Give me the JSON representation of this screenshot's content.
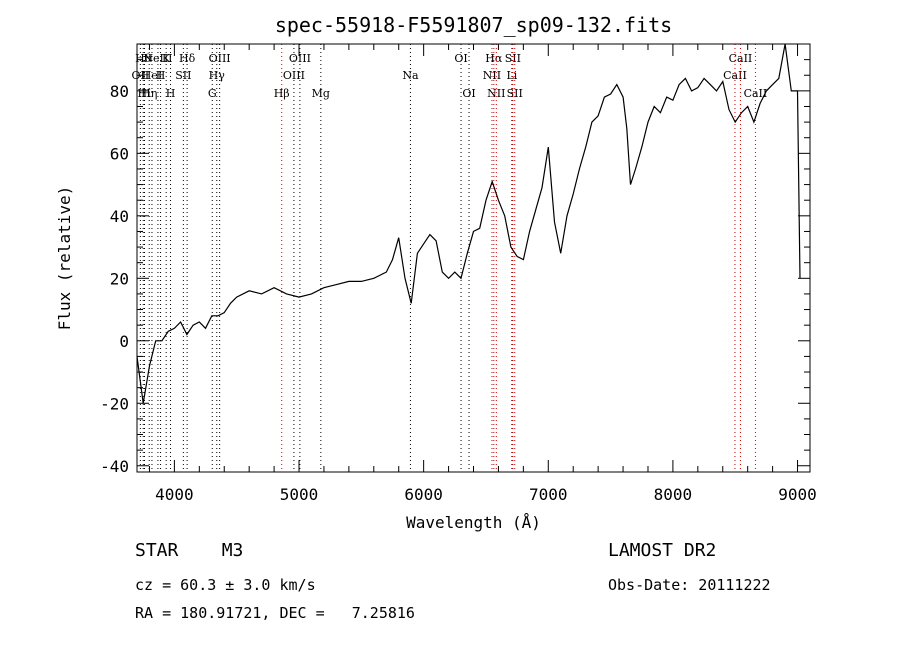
{
  "chart_data": {
    "type": "line",
    "title": "spec-55918-F5591807_sp09-132.fits",
    "xlabel": "Wavelength (Å)",
    "ylabel": "Flux (relative)",
    "xlim": [
      3700,
      9100
    ],
    "ylim": [
      -42,
      95
    ],
    "xticks": [
      4000,
      5000,
      6000,
      7000,
      8000,
      9000
    ],
    "yticks": [
      -40,
      -20,
      0,
      20,
      40,
      60,
      80
    ],
    "grid": false,
    "series": [
      {
        "color": "#000000",
        "points": [
          [
            3700,
            -5
          ],
          [
            3750,
            -20
          ],
          [
            3800,
            -8
          ],
          [
            3850,
            0
          ],
          [
            3900,
            0
          ],
          [
            3950,
            3
          ],
          [
            4000,
            4
          ],
          [
            4050,
            6
          ],
          [
            4100,
            2
          ],
          [
            4150,
            5
          ],
          [
            4200,
            6
          ],
          [
            4250,
            4
          ],
          [
            4300,
            8
          ],
          [
            4350,
            8
          ],
          [
            4400,
            9
          ],
          [
            4450,
            12
          ],
          [
            4500,
            14
          ],
          [
            4600,
            16
          ],
          [
            4700,
            15
          ],
          [
            4800,
            17
          ],
          [
            4900,
            15
          ],
          [
            5000,
            14
          ],
          [
            5100,
            15
          ],
          [
            5200,
            17
          ],
          [
            5300,
            18
          ],
          [
            5400,
            19
          ],
          [
            5500,
            19
          ],
          [
            5600,
            20
          ],
          [
            5700,
            22
          ],
          [
            5750,
            26
          ],
          [
            5800,
            33
          ],
          [
            5850,
            20
          ],
          [
            5900,
            12
          ],
          [
            5950,
            28
          ],
          [
            6000,
            31
          ],
          [
            6050,
            34
          ],
          [
            6100,
            32
          ],
          [
            6150,
            22
          ],
          [
            6200,
            20
          ],
          [
            6250,
            22
          ],
          [
            6300,
            20
          ],
          [
            6350,
            28
          ],
          [
            6400,
            35
          ],
          [
            6450,
            36
          ],
          [
            6500,
            45
          ],
          [
            6550,
            51
          ],
          [
            6600,
            45
          ],
          [
            6650,
            40
          ],
          [
            6700,
            30
          ],
          [
            6750,
            27
          ],
          [
            6800,
            26
          ],
          [
            6850,
            35
          ],
          [
            6900,
            42
          ],
          [
            6950,
            49
          ],
          [
            7000,
            62
          ],
          [
            7050,
            38
          ],
          [
            7100,
            28
          ],
          [
            7150,
            40
          ],
          [
            7200,
            47
          ],
          [
            7250,
            55
          ],
          [
            7300,
            62
          ],
          [
            7350,
            70
          ],
          [
            7400,
            72
          ],
          [
            7450,
            78
          ],
          [
            7500,
            79
          ],
          [
            7550,
            82
          ],
          [
            7600,
            78
          ],
          [
            7630,
            68
          ],
          [
            7660,
            50
          ],
          [
            7700,
            55
          ],
          [
            7750,
            62
          ],
          [
            7800,
            70
          ],
          [
            7850,
            75
          ],
          [
            7900,
            73
          ],
          [
            7950,
            78
          ],
          [
            8000,
            77
          ],
          [
            8050,
            82
          ],
          [
            8100,
            84
          ],
          [
            8150,
            80
          ],
          [
            8200,
            81
          ],
          [
            8250,
            84
          ],
          [
            8300,
            82
          ],
          [
            8350,
            80
          ],
          [
            8400,
            83
          ],
          [
            8450,
            74
          ],
          [
            8500,
            70
          ],
          [
            8550,
            73
          ],
          [
            8600,
            75
          ],
          [
            8650,
            70
          ],
          [
            8700,
            76
          ],
          [
            8750,
            80
          ],
          [
            8800,
            82
          ],
          [
            8850,
            84
          ],
          [
            8900,
            95
          ],
          [
            8950,
            80
          ],
          [
            9000,
            80
          ],
          [
            9020,
            20
          ]
        ]
      }
    ],
    "line_markers": [
      {
        "wl": 3727,
        "label": "OII",
        "row": 2,
        "color": "#000000"
      },
      {
        "wl": 3750,
        "label": "Hθ",
        "row": 1,
        "color": "#000000"
      },
      {
        "wl": 3760,
        "label": "Hι",
        "row": 3,
        "color": "#000000"
      },
      {
        "wl": 3798,
        "label": "Hη",
        "row": 3,
        "color": "#000000"
      },
      {
        "wl": 3820,
        "label": "HeI",
        "row": 2,
        "color": "#000000"
      },
      {
        "wl": 3868,
        "label": "NeIII",
        "row": 1,
        "color": "#000000"
      },
      {
        "wl": 3889,
        "label": "H",
        "row": 2,
        "color": "#000000"
      },
      {
        "wl": 3934,
        "label": "K",
        "row": 1,
        "color": "#000000"
      },
      {
        "wl": 3969,
        "label": "H",
        "row": 3,
        "color": "#000000"
      },
      {
        "wl": 4072,
        "label": "SII",
        "row": 2,
        "color": "#000000"
      },
      {
        "wl": 4102,
        "label": "Hδ",
        "row": 1,
        "color": "#000000"
      },
      {
        "wl": 4304,
        "label": "G",
        "row": 3,
        "color": "#000000"
      },
      {
        "wl": 4340,
        "label": "Hγ",
        "row": 2,
        "color": "#000000"
      },
      {
        "wl": 4363,
        "label": "OIII",
        "row": 1,
        "color": "#000000"
      },
      {
        "wl": 4861,
        "label": "Hβ",
        "row": 3,
        "color": "#cc0000"
      },
      {
        "wl": 4959,
        "label": "OIII",
        "row": 2,
        "color": "#000000"
      },
      {
        "wl": 5007,
        "label": "OIII",
        "row": 1,
        "color": "#000000"
      },
      {
        "wl": 5175,
        "label": "Mg",
        "row": 3,
        "color": "#000000"
      },
      {
        "wl": 5894,
        "label": "Na",
        "row": 2,
        "color": "#000000"
      },
      {
        "wl": 6300,
        "label": "OI",
        "row": 1,
        "color": "#000000"
      },
      {
        "wl": 6364,
        "label": "OI",
        "row": 3,
        "color": "#000000"
      },
      {
        "wl": 6548,
        "label": "NII",
        "row": 2,
        "color": "#cc0000"
      },
      {
        "wl": 6563,
        "label": "Hα",
        "row": 1,
        "color": "#cc0000"
      },
      {
        "wl": 6583,
        "label": "NII",
        "row": 3,
        "color": "#cc0000"
      },
      {
        "wl": 6708,
        "label": "Li",
        "row": 2,
        "color": "#000000"
      },
      {
        "wl": 6716,
        "label": "SII",
        "row": 1,
        "color": "#cc0000"
      },
      {
        "wl": 6731,
        "label": "SII",
        "row": 3,
        "color": "#cc0000"
      },
      {
        "wl": 8498,
        "label": "CaII",
        "row": 2,
        "color": "#cc0000"
      },
      {
        "wl": 8542,
        "label": "CaII",
        "row": 1,
        "color": "#cc0000"
      },
      {
        "wl": 8662,
        "label": "CaII",
        "row": 3,
        "color": "#cc0000"
      }
    ]
  },
  "info": {
    "object": "STAR    M3",
    "survey": "LAMOST DR2",
    "cz": "cz = 60.3 ± 3.0 km/s",
    "obs_date": "Obs-Date: 20111222",
    "coords": "RA = 180.91721, DEC =   7.25816"
  }
}
